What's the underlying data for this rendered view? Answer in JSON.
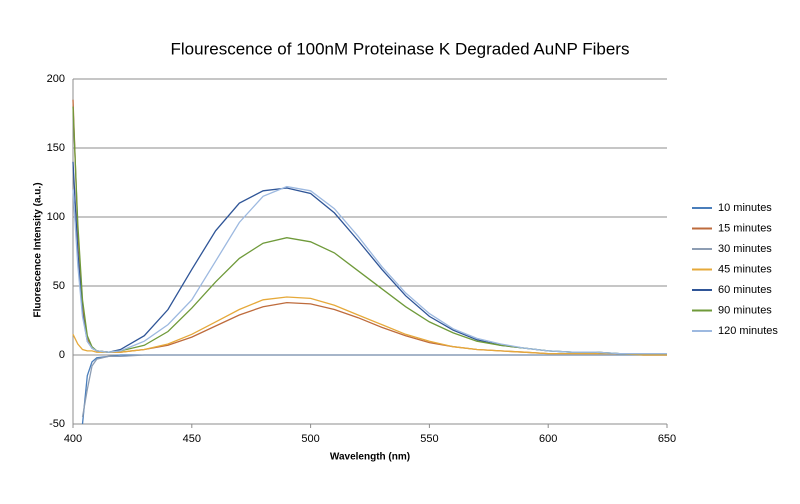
{
  "chart_data": {
    "type": "line",
    "title": "Flourescence of 100nM Proteinase K Degraded AuNP Fibers",
    "x_label": "Wavelength (nm)",
    "y_label": "Fluorescence Intensity (a.u.)",
    "x": [
      400,
      402,
      404,
      406,
      408,
      410,
      415,
      420,
      430,
      440,
      450,
      460,
      470,
      480,
      490,
      500,
      510,
      520,
      530,
      540,
      550,
      560,
      570,
      580,
      590,
      600,
      610,
      620,
      630,
      640,
      650
    ],
    "series": [
      {
        "name": "10 minutes",
        "color": "#4a7ebb",
        "values": [
          null,
          null,
          -50,
          -15,
          -5,
          -2,
          -1,
          0,
          0,
          0,
          0,
          0,
          0,
          0,
          0,
          0,
          0,
          0,
          0,
          0,
          0,
          0,
          0,
          0,
          0,
          0,
          0,
          0,
          0,
          0,
          0
        ]
      },
      {
        "name": "15 minutes",
        "color": "#be6b3c",
        "values": [
          185,
          90,
          35,
          12,
          5,
          3,
          2,
          2,
          4,
          7,
          13,
          21,
          29,
          35,
          38,
          37,
          33,
          27,
          20,
          14,
          9,
          6,
          4,
          3,
          2,
          1,
          1,
          1,
          1,
          0,
          0
        ]
      },
      {
        "name": "30 minutes",
        "color": "#8d9db3",
        "values": [
          null,
          null,
          -45,
          -25,
          -8,
          -3,
          -1,
          -1,
          0,
          0,
          0,
          0,
          0,
          0,
          0,
          0,
          0,
          0,
          0,
          0,
          0,
          0,
          0,
          0,
          0,
          0,
          0,
          0,
          0,
          0,
          0
        ]
      },
      {
        "name": "45 minutes",
        "color": "#e6a93a",
        "values": [
          15,
          8,
          4,
          3,
          3,
          2,
          2,
          2,
          4,
          8,
          15,
          24,
          33,
          40,
          42,
          41,
          36,
          29,
          22,
          15,
          10,
          6,
          4,
          3,
          2,
          1,
          1,
          1,
          1,
          0,
          0
        ]
      },
      {
        "name": "60 minutes",
        "color": "#2f5597",
        "values": [
          140,
          75,
          30,
          10,
          5,
          3,
          2,
          4,
          14,
          33,
          62,
          90,
          110,
          119,
          121,
          117,
          103,
          83,
          62,
          43,
          28,
          18,
          11,
          7,
          5,
          3,
          2,
          2,
          1,
          1,
          1
        ]
      },
      {
        "name": "90 minutes",
        "color": "#6f9a3a",
        "values": [
          180,
          95,
          40,
          14,
          6,
          3,
          2,
          3,
          7,
          17,
          34,
          53,
          70,
          81,
          85,
          82,
          74,
          61,
          48,
          35,
          24,
          16,
          10,
          7,
          5,
          3,
          2,
          2,
          1,
          1,
          1
        ]
      },
      {
        "name": "120 minutes",
        "color": "#9db9e0",
        "values": [
          120,
          65,
          28,
          10,
          5,
          3,
          2,
          3,
          10,
          22,
          40,
          68,
          96,
          115,
          122,
          119,
          106,
          86,
          64,
          45,
          30,
          19,
          12,
          8,
          5,
          3,
          2,
          2,
          1,
          1,
          1
        ]
      }
    ],
    "xlim": [
      400,
      650
    ],
    "xticks": [
      400,
      450,
      500,
      550,
      600,
      650
    ],
    "ylim": [
      -50,
      200
    ],
    "yticks": [
      -50,
      0,
      50,
      100,
      150,
      200
    ],
    "grid": true,
    "legend": "right"
  }
}
